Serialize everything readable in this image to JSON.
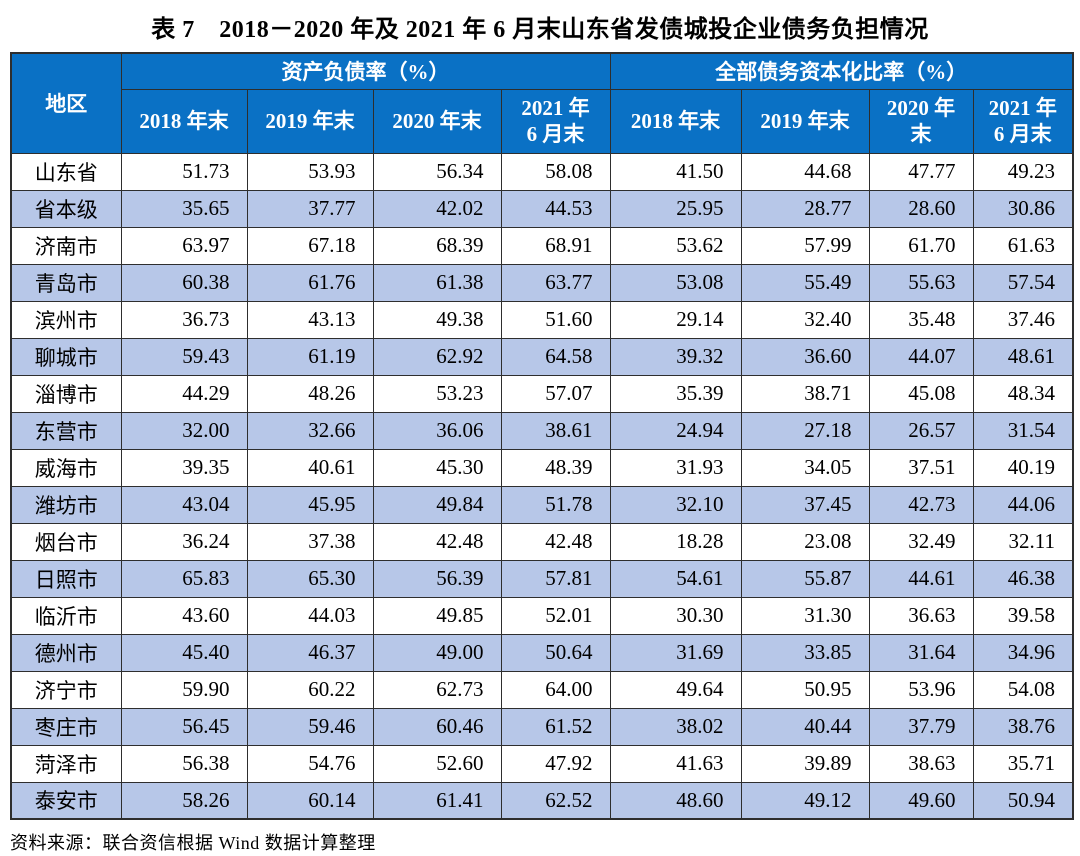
{
  "title": "表 7　2018－2020 年及 2021 年 6 月末山东省发债城投企业债务负担情况",
  "source_note": "资料来源：联合资信根据 Wind 数据计算整理",
  "colors": {
    "header_bg": "#0a71c5",
    "header_text": "#ffffff",
    "alt_row_bg": "#b7c7e8",
    "row_bg": "#ffffff",
    "border": "#2e2e2e"
  },
  "chart_data": {
    "type": "table",
    "title": "表 7　2018－2020 年及 2021 年 6 月末山东省发债城投企业债务负担情况",
    "region_header": "地区",
    "groups": [
      {
        "label": "资产负债率（%）"
      },
      {
        "label": "全部债务资本化比率（%）"
      }
    ],
    "year_headers": [
      "2018 年末",
      "2019 年末",
      "2020 年末",
      "2021 年\n6 月末",
      "2018 年末",
      "2019 年末",
      "2020 年\n末",
      "2021 年\n6 月末"
    ],
    "rows": [
      {
        "region": "山东省",
        "values": [
          "51.73",
          "53.93",
          "56.34",
          "58.08",
          "41.50",
          "44.68",
          "47.77",
          "49.23"
        ]
      },
      {
        "region": "省本级",
        "values": [
          "35.65",
          "37.77",
          "42.02",
          "44.53",
          "25.95",
          "28.77",
          "28.60",
          "30.86"
        ]
      },
      {
        "region": "济南市",
        "values": [
          "63.97",
          "67.18",
          "68.39",
          "68.91",
          "53.62",
          "57.99",
          "61.70",
          "61.63"
        ]
      },
      {
        "region": "青岛市",
        "values": [
          "60.38",
          "61.76",
          "61.38",
          "63.77",
          "53.08",
          "55.49",
          "55.63",
          "57.54"
        ]
      },
      {
        "region": "滨州市",
        "values": [
          "36.73",
          "43.13",
          "49.38",
          "51.60",
          "29.14",
          "32.40",
          "35.48",
          "37.46"
        ]
      },
      {
        "region": "聊城市",
        "values": [
          "59.43",
          "61.19",
          "62.92",
          "64.58",
          "39.32",
          "36.60",
          "44.07",
          "48.61"
        ]
      },
      {
        "region": "淄博市",
        "values": [
          "44.29",
          "48.26",
          "53.23",
          "57.07",
          "35.39",
          "38.71",
          "45.08",
          "48.34"
        ]
      },
      {
        "region": "东营市",
        "values": [
          "32.00",
          "32.66",
          "36.06",
          "38.61",
          "24.94",
          "27.18",
          "26.57",
          "31.54"
        ]
      },
      {
        "region": "威海市",
        "values": [
          "39.35",
          "40.61",
          "45.30",
          "48.39",
          "31.93",
          "34.05",
          "37.51",
          "40.19"
        ]
      },
      {
        "region": "潍坊市",
        "values": [
          "43.04",
          "45.95",
          "49.84",
          "51.78",
          "32.10",
          "37.45",
          "42.73",
          "44.06"
        ]
      },
      {
        "region": "烟台市",
        "values": [
          "36.24",
          "37.38",
          "42.48",
          "42.48",
          "18.28",
          "23.08",
          "32.49",
          "32.11"
        ]
      },
      {
        "region": "日照市",
        "values": [
          "65.83",
          "65.30",
          "56.39",
          "57.81",
          "54.61",
          "55.87",
          "44.61",
          "46.38"
        ]
      },
      {
        "region": "临沂市",
        "values": [
          "43.60",
          "44.03",
          "49.85",
          "52.01",
          "30.30",
          "31.30",
          "36.63",
          "39.58"
        ]
      },
      {
        "region": "德州市",
        "values": [
          "45.40",
          "46.37",
          "49.00",
          "50.64",
          "31.69",
          "33.85",
          "31.64",
          "34.96"
        ]
      },
      {
        "region": "济宁市",
        "values": [
          "59.90",
          "60.22",
          "62.73",
          "64.00",
          "49.64",
          "50.95",
          "53.96",
          "54.08"
        ]
      },
      {
        "region": "枣庄市",
        "values": [
          "56.45",
          "59.46",
          "60.46",
          "61.52",
          "38.02",
          "40.44",
          "37.79",
          "38.76"
        ]
      },
      {
        "region": "菏泽市",
        "values": [
          "56.38",
          "54.76",
          "52.60",
          "47.92",
          "41.63",
          "39.89",
          "38.63",
          "35.71"
        ]
      },
      {
        "region": "泰安市",
        "values": [
          "58.26",
          "60.14",
          "61.41",
          "62.52",
          "48.60",
          "49.12",
          "49.60",
          "50.94"
        ]
      }
    ]
  }
}
